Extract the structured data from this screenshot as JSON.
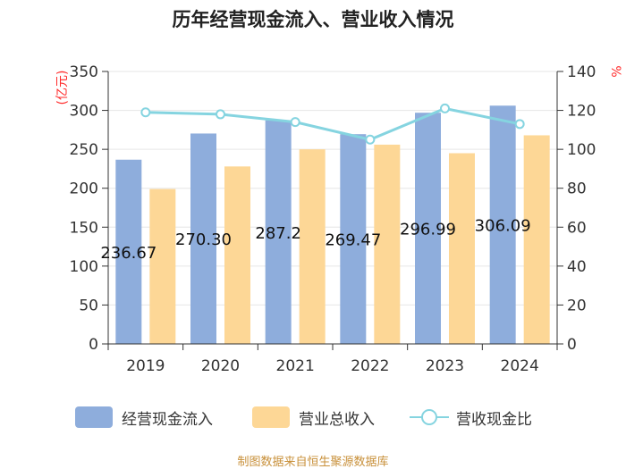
{
  "title": "历年经营现金流入、营业收入情况",
  "source": "制图数据来自恒生聚源数据库",
  "colors": {
    "cash_inflow": "#8eaddc",
    "revenue": "#fdd796",
    "ratio": "#85d4e0",
    "unit": "#ff2a2a"
  },
  "chart_data": {
    "type": "bar",
    "categories": [
      "2019",
      "2020",
      "2021",
      "2022",
      "2023",
      "2024"
    ],
    "series": [
      {
        "name": "经营现金流入",
        "axis": "left",
        "type": "bar",
        "values": [
          236.67,
          270.3,
          287.24,
          269.47,
          296.99,
          306.09
        ],
        "labels": [
          "236.67",
          "270.30",
          "287.2",
          "269.47",
          "296.99",
          "306.09"
        ]
      },
      {
        "name": "营业总收入",
        "axis": "left",
        "type": "bar",
        "values": [
          199,
          228,
          250,
          256,
          245,
          268
        ]
      },
      {
        "name": "营收现金比",
        "axis": "right",
        "type": "line",
        "values": [
          119,
          118,
          114,
          105,
          121,
          113
        ]
      }
    ],
    "left_axis": {
      "unit": "(亿元)",
      "min": 0,
      "max": 350,
      "ticks": [
        0,
        50,
        100,
        150,
        200,
        250,
        300,
        350
      ]
    },
    "right_axis": {
      "unit": "%",
      "min": 0,
      "max": 140,
      "ticks": [
        0,
        20,
        40,
        60,
        80,
        100,
        120,
        140
      ]
    },
    "grid": true,
    "legend_position": "bottom"
  }
}
